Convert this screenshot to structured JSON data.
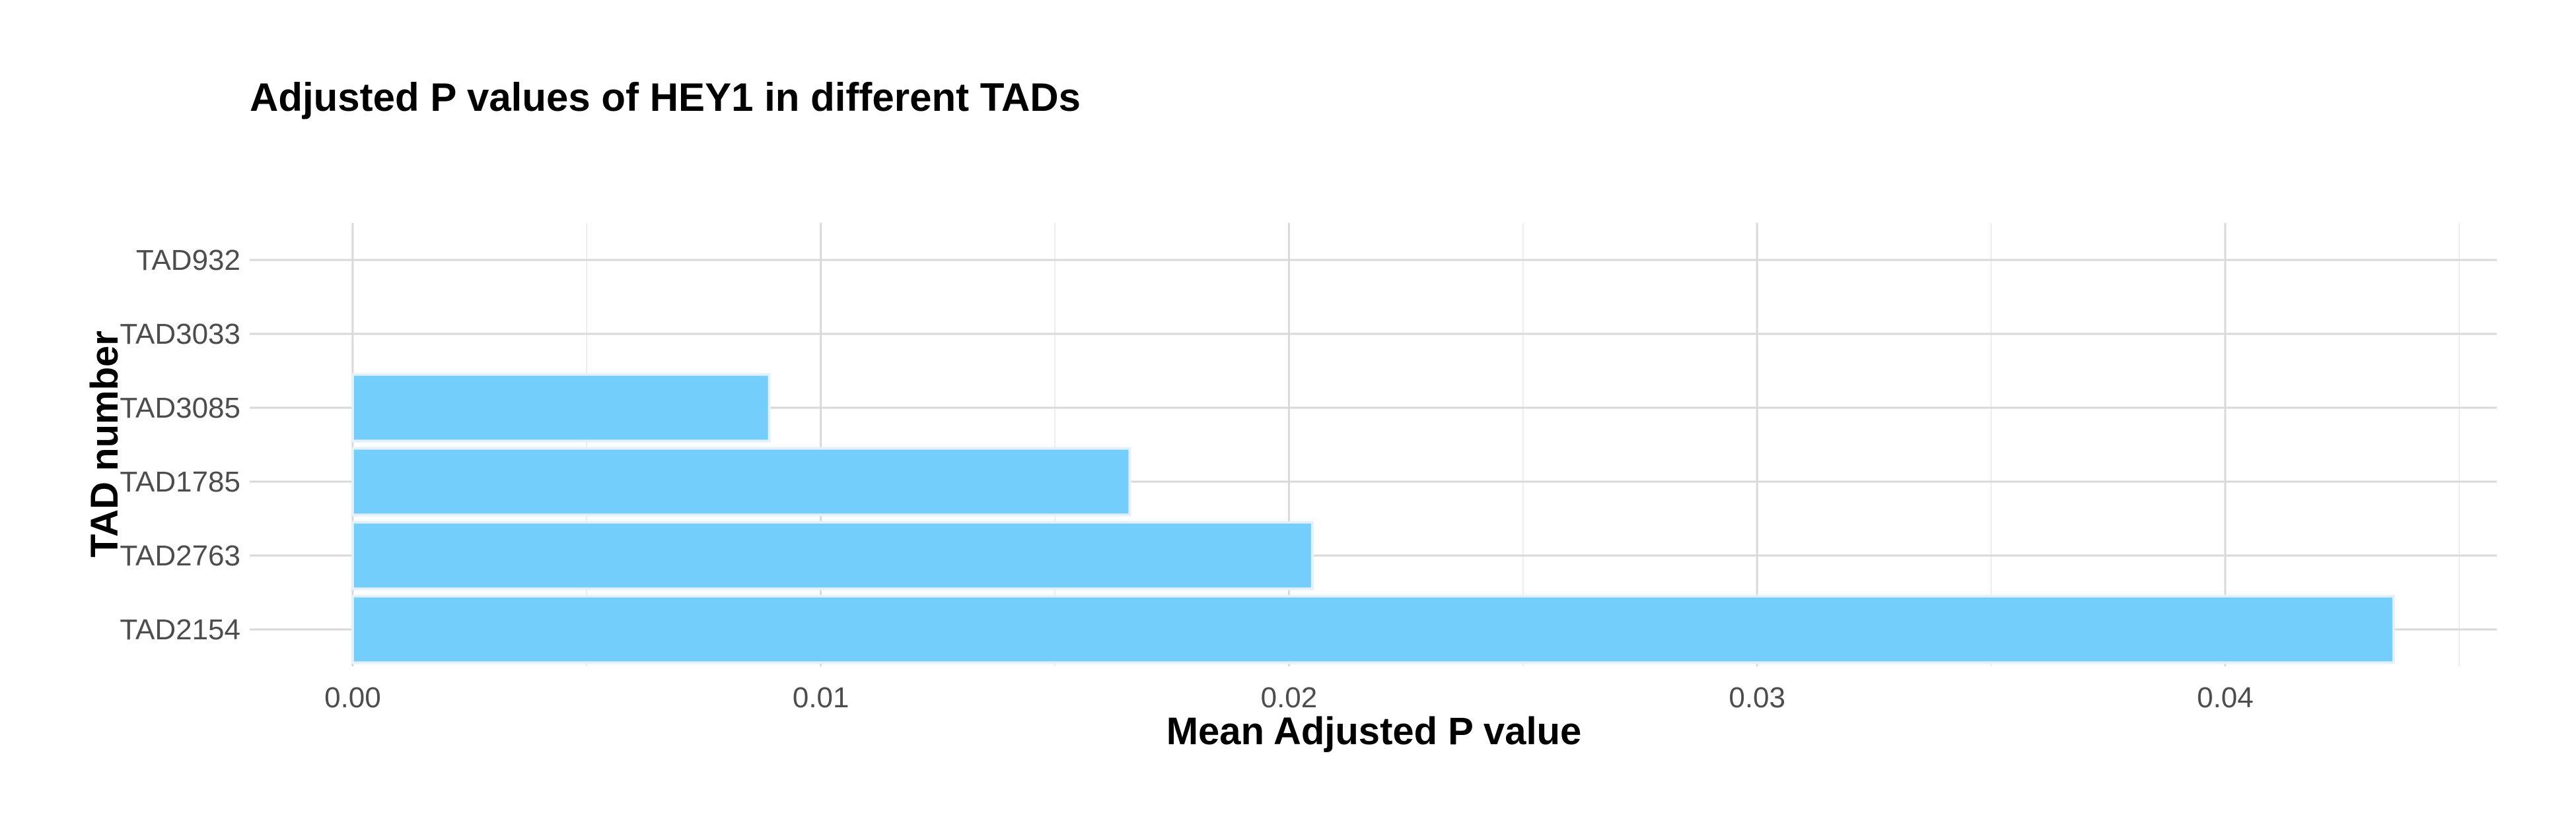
{
  "chart_data": {
    "type": "bar",
    "orientation": "horizontal",
    "title": "Adjusted P values of HEY1 in different TADs",
    "xlabel": "Mean Adjusted P value",
    "ylabel": "TAD number",
    "categories": [
      "TAD2154",
      "TAD2763",
      "TAD1785",
      "TAD3085",
      "TAD3033",
      "TAD932"
    ],
    "values": [
      0.0436,
      0.0205,
      0.0166,
      0.0089,
      0.0,
      0.0
    ],
    "xlim": [
      -0.0022,
      0.0458
    ],
    "xticks": [
      0.0,
      0.01,
      0.02,
      0.03,
      0.04
    ],
    "xtick_labels": [
      "0.00",
      "0.01",
      "0.02",
      "0.03",
      "0.04"
    ],
    "grid": true,
    "legend": "none",
    "bar_color": "#73CEFB",
    "bar_edge_color": "#E3F1FA",
    "grid_color": "#D9D9D9"
  }
}
